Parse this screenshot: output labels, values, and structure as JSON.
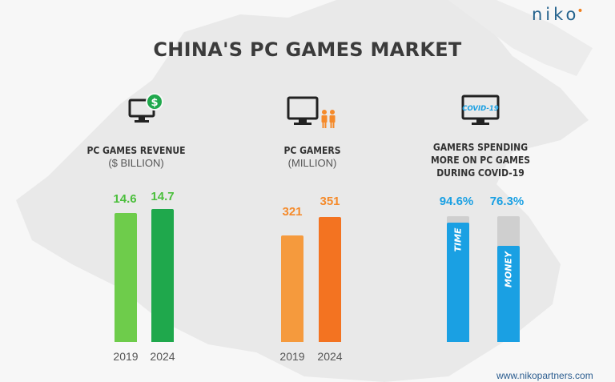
{
  "brand": {
    "logo": "niko",
    "logo_dot": "•",
    "url": "www.nikopartners.com"
  },
  "title": "CHINA'S PC GAMES MARKET",
  "panels": {
    "revenue": {
      "label": "PC GAMES REVENUE",
      "sublabel": "($ BILLION)"
    },
    "gamers": {
      "label": "PC GAMERS",
      "sublabel": "(MILLION)"
    },
    "spending": {
      "label_lines": [
        "GAMERS SPENDING",
        "MORE ON PC GAMES",
        "DURING COVID-19"
      ],
      "icon_text": "COVID-19"
    }
  },
  "colors": {
    "revenue_2019": "#6ecc4b",
    "revenue_2024": "#1fa84c",
    "gamers_2019": "#f59a3d",
    "gamers_2024": "#f37321",
    "spend_fill": "#1aa0e3",
    "spend_track": "#cfcfcf",
    "revenue_text": "#4bbf3c",
    "gamers_text": "#f58a2a",
    "spend_text": "#1aa0e3"
  },
  "chart_data": [
    {
      "type": "bar",
      "title": "PC GAMES REVENUE",
      "ylabel": "($ BILLION)",
      "categories": [
        "2019",
        "2024"
      ],
      "values": [
        14.6,
        14.7
      ],
      "labels": [
        "14.6",
        "14.7"
      ]
    },
    {
      "type": "bar",
      "title": "PC GAMERS",
      "ylabel": "(MILLION)",
      "categories": [
        "2019",
        "2024"
      ],
      "values": [
        321,
        351
      ],
      "labels": [
        "321",
        "351"
      ]
    },
    {
      "type": "bar",
      "title": "GAMERS SPENDING MORE ON PC GAMES DURING COVID-19",
      "categories": [
        "TIME",
        "MONEY"
      ],
      "values": [
        94.6,
        76.3
      ],
      "labels": [
        "94.6%",
        "76.3%"
      ],
      "ylim": [
        0,
        100
      ]
    }
  ]
}
